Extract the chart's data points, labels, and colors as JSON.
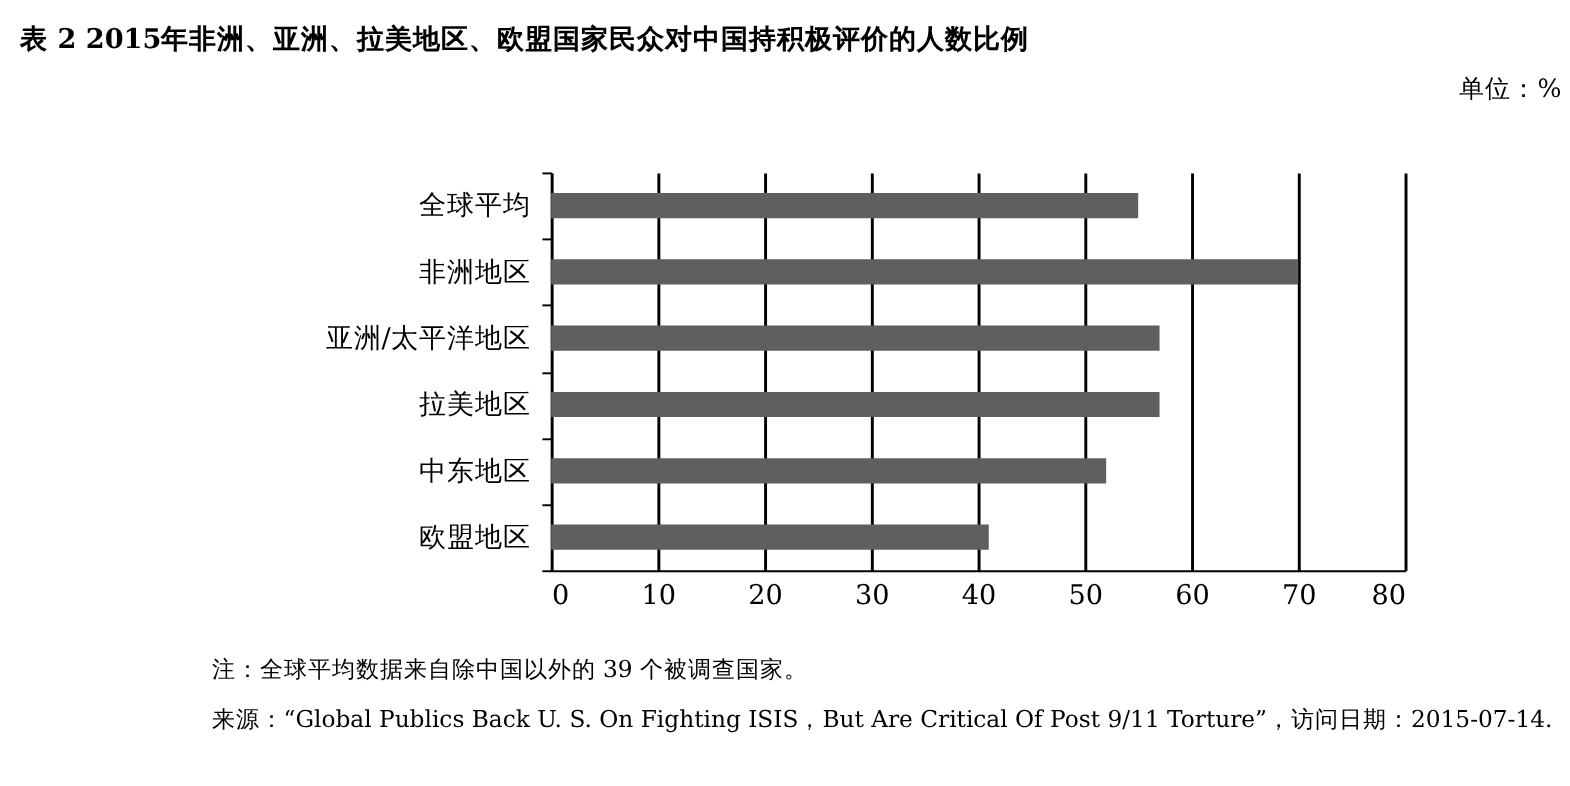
{
  "chart_data": {
    "type": "bar",
    "orientation": "horizontal",
    "title": "表 2   2015年非洲、亚洲、拉美地区、欧盟国家民众对中国持积极评价的人数比例",
    "categories": [
      "全球平均",
      "非洲地区",
      "亚洲/太平洋地区",
      "拉美地区",
      "中东地区",
      "欧盟地区"
    ],
    "values": [
      55,
      70,
      57,
      57,
      52,
      41
    ],
    "color": "#5f5f5f",
    "xlim": [
      0,
      80
    ],
    "xticks": [
      0,
      10,
      20,
      30,
      40,
      50,
      60,
      70,
      80
    ],
    "grid": "x",
    "annotations": [
      "单位：%",
      "注：全球平均数据来自除中国以外的 39 个被调查国家。",
      "来源：“Global Publics Back U. S. On Fighting ISIS，But Are Critical Of Post 9/11 Torture”，访问日期：2015-07-14."
    ]
  }
}
